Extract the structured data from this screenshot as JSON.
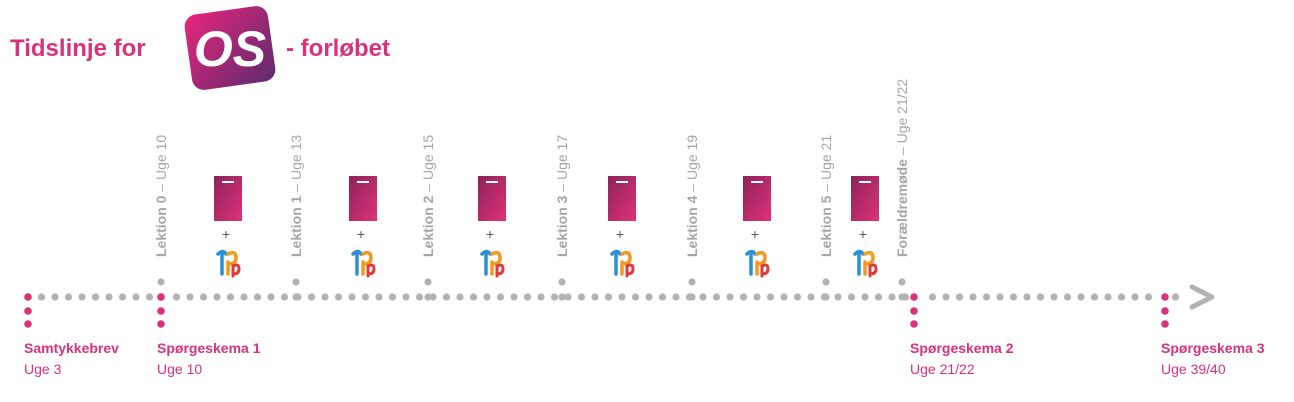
{
  "header": {
    "title_before": "Tidslinje for",
    "logo": "OS",
    "title_after": "- forløbet"
  },
  "lessons": [
    {
      "label": "Lektion 0",
      "week": "– Uge 10"
    },
    {
      "label": "Lektion 1",
      "week": "– Uge 13"
    },
    {
      "label": "Lektion 2",
      "week": "– Uge 15"
    },
    {
      "label": "Lektion 3",
      "week": "– Uge 17"
    },
    {
      "label": "Lektion 4",
      "week": "– Uge 19"
    },
    {
      "label": "Lektion 5",
      "week": "– Uge 21"
    },
    {
      "label": "Forældremøde",
      "week": "– Uge 21/22"
    }
  ],
  "materials": {
    "plus": "+"
  },
  "milestones": [
    {
      "label": "Samtykkebrev",
      "week": "Uge 3"
    },
    {
      "label": "Spørgeskema 1",
      "week": "Uge 10"
    },
    {
      "label": "Spørgeskema 2",
      "week": "Uge 21/22"
    },
    {
      "label": "Spørgeskema 3",
      "week": "Uge 39/40"
    }
  ]
}
